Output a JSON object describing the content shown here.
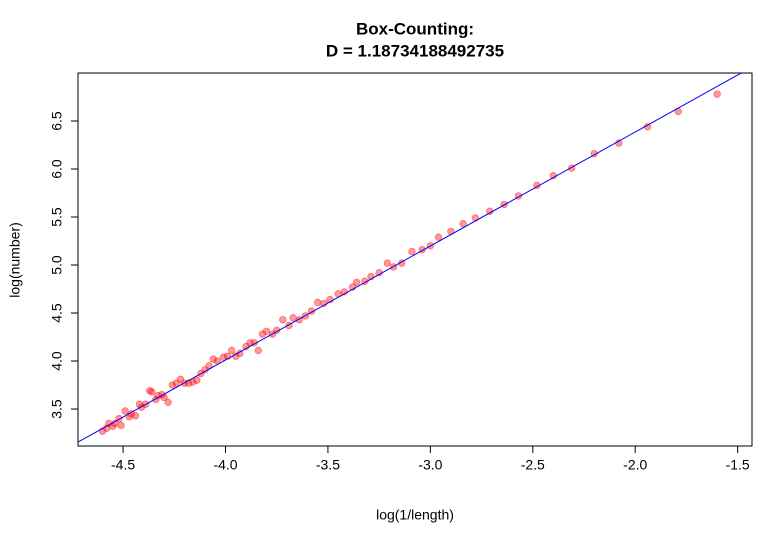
{
  "chart_data": {
    "type": "scatter",
    "title": "Box-Counting:",
    "subtitle": "D = 1.18734188492735",
    "x_label": "log(1/length)",
    "y_label": "log(number)",
    "xlim": [
      -4.72,
      -1.43
    ],
    "ylim": [
      3.115,
      7.0
    ],
    "xticks": [
      -4.5,
      -4.0,
      -3.5,
      -3.0,
      -2.5,
      -2.0,
      -1.5
    ],
    "xtick_labels": [
      "-4.5",
      "-4.0",
      "-3.5",
      "-3.0",
      "-2.5",
      "-2.0",
      "-1.5"
    ],
    "yticks": [
      3.5,
      4.0,
      4.5,
      5.0,
      5.5,
      6.0,
      6.5
    ],
    "ytick_labels": [
      "3.5",
      "4.0",
      "4.5",
      "5.0",
      "5.5",
      "6.0",
      "6.5"
    ],
    "point_color": "#ff0000",
    "line": {
      "slope": 1.18734188492735,
      "intercept": 8.76,
      "color": "#0000ff"
    },
    "x": [
      -1.6,
      -1.79,
      -1.94,
      -2.08,
      -2.2,
      -2.31,
      -2.4,
      -2.48,
      -2.57,
      -2.64,
      -2.71,
      -2.78,
      -2.84,
      -2.9,
      -2.96,
      -3.0,
      -3.04,
      -3.09,
      -3.14,
      -3.18,
      -3.21,
      -3.25,
      -3.29,
      -3.32,
      -3.36,
      -3.38,
      -3.42,
      -3.45,
      -3.49,
      -3.52,
      -3.55,
      -3.58,
      -3.61,
      -3.64,
      -3.67,
      -3.69,
      -3.72,
      -3.75,
      -3.77,
      -3.8,
      -3.82,
      -3.84,
      -3.86,
      -3.88,
      -3.9,
      -3.93,
      -3.95,
      -3.97,
      -3.99,
      -4.01,
      -4.04,
      -4.06,
      -4.08,
      -4.1,
      -4.12,
      -4.14,
      -4.16,
      -4.18,
      -4.2,
      -4.22,
      -4.24,
      -4.26,
      -4.28,
      -4.3,
      -4.31,
      -4.33,
      -4.34,
      -4.36,
      -4.37,
      -4.39,
      -4.41,
      -4.42,
      -4.44,
      -4.46,
      -4.47,
      -4.49,
      -4.51,
      -4.52,
      -4.54,
      -4.55,
      -4.57,
      -4.58,
      -4.6
    ],
    "values": [
      6.78,
      6.6,
      6.44,
      6.27,
      6.16,
      6.01,
      5.93,
      5.83,
      5.72,
      5.63,
      5.56,
      5.49,
      5.43,
      5.35,
      5.29,
      5.2,
      5.16,
      5.14,
      5.02,
      4.98,
      5.02,
      4.92,
      4.88,
      4.83,
      4.82,
      4.77,
      4.72,
      4.7,
      4.64,
      4.6,
      4.61,
      4.52,
      4.47,
      4.43,
      4.45,
      4.37,
      4.43,
      4.32,
      4.28,
      4.31,
      4.28,
      4.11,
      4.19,
      4.19,
      4.15,
      4.08,
      4.05,
      4.11,
      4.05,
      4.04,
      4.0,
      4.02,
      3.95,
      3.91,
      3.87,
      3.8,
      3.78,
      3.77,
      3.77,
      3.81,
      3.77,
      3.75,
      3.57,
      3.62,
      3.65,
      3.64,
      3.6,
      3.68,
      3.69,
      3.55,
      3.52,
      3.55,
      3.43,
      3.45,
      3.42,
      3.48,
      3.33,
      3.4,
      3.35,
      3.32,
      3.35,
      3.3,
      3.27
    ]
  }
}
